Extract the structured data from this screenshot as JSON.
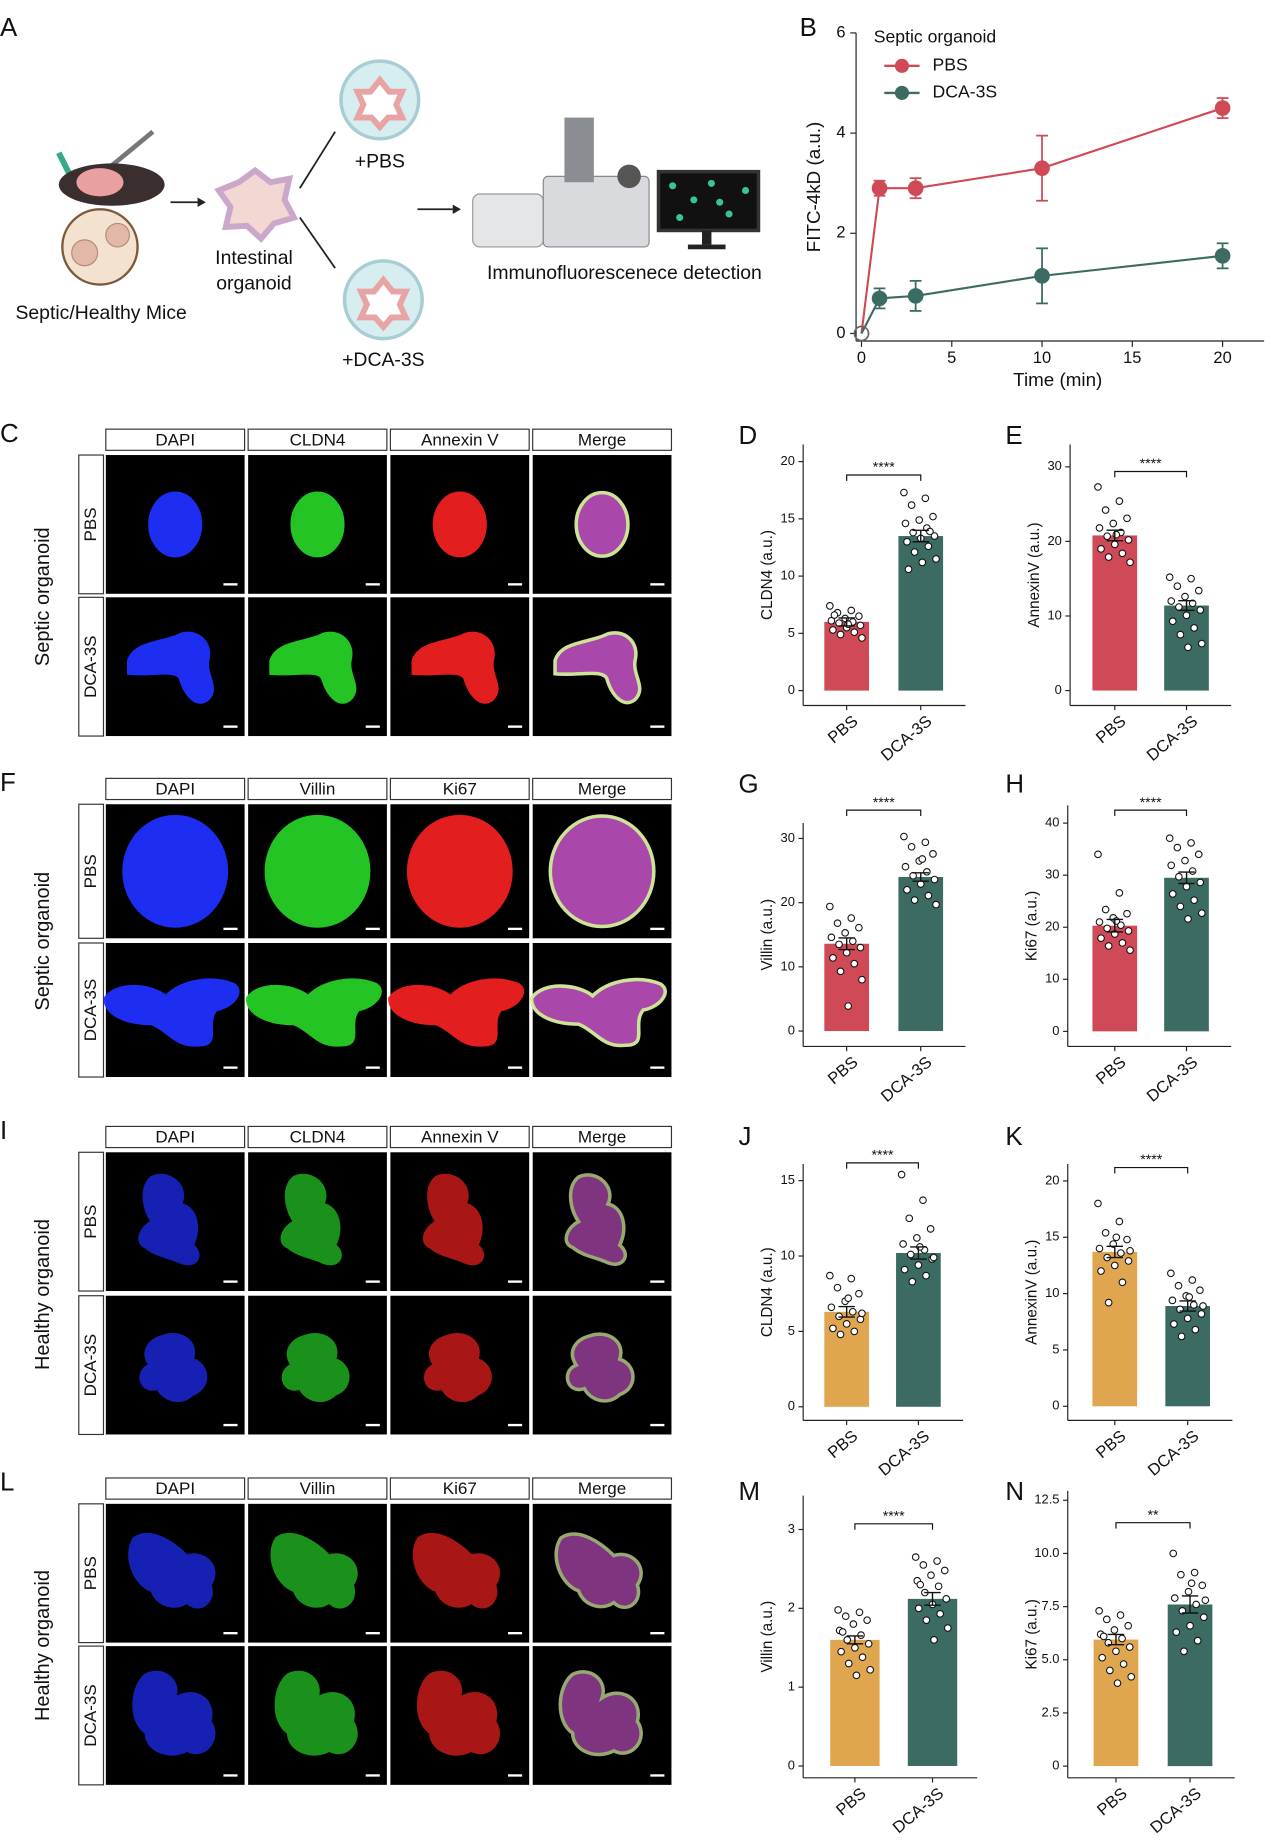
{
  "panel_a": {
    "label": "A",
    "mice": "Septic/Healthy Mice",
    "organoid": [
      "Intestinal",
      "organoid"
    ],
    "treatments": [
      "+PBS",
      "+DCA-3S"
    ],
    "detection": "Immunofluorescenece detection"
  },
  "image_panels": [
    {
      "label": "C",
      "group": "Septic organoid",
      "columns": [
        "DAPI",
        "CLDN4",
        "Annexin V",
        "Merge"
      ],
      "rows": [
        "PBS",
        "DCA-3S"
      ]
    },
    {
      "label": "F",
      "group": "Septic organoid",
      "columns": [
        "DAPI",
        "Villin",
        "Ki67",
        "Merge"
      ],
      "rows": [
        "PBS",
        "DCA-3S"
      ]
    },
    {
      "label": "I",
      "group": "Healthy organoid",
      "columns": [
        "DAPI",
        "CLDN4",
        "Annexin V",
        "Merge"
      ],
      "rows": [
        "PBS",
        "DCA-3S"
      ]
    },
    {
      "label": "L",
      "group": "Healthy organoid",
      "columns": [
        "DAPI",
        "Villin",
        "Ki67",
        "Merge"
      ],
      "rows": [
        "PBS",
        "DCA-3S"
      ]
    }
  ],
  "chart_data": [
    {
      "type": "line",
      "label": "B",
      "legend_title": "Septic organoid",
      "xlabel": "Time (min)",
      "ylabel": "FITC-4kD (a.u.)",
      "x": [
        0,
        1,
        3,
        10,
        20
      ],
      "xlim": [
        -0.3,
        22.3
      ],
      "ylim": [
        -0.15,
        6
      ],
      "xticks": [
        0,
        5,
        10,
        15,
        20
      ],
      "yticks": [
        0,
        2,
        4,
        6
      ],
      "series": [
        {
          "name": "PBS",
          "color": "#cf4a56",
          "values": [
            0,
            2.9,
            2.9,
            3.3,
            4.5
          ],
          "errors": [
            null,
            0.15,
            0.2,
            0.65,
            0.2
          ]
        },
        {
          "name": "DCA-3S",
          "color": "#3b6b62",
          "values": [
            0,
            0.7,
            0.75,
            1.15,
            1.55
          ],
          "errors": [
            null,
            0.2,
            0.3,
            0.55,
            0.25
          ]
        }
      ]
    },
    {
      "type": "bar",
      "label": "D",
      "ylabel": "CLDN4 (a.u.)",
      "categories": [
        "PBS",
        "DCA-3S"
      ],
      "colors": [
        "#cf4a56",
        "#3b6b62"
      ],
      "values": [
        6.0,
        13.5
      ],
      "errors": [
        0.35,
        0.5
      ],
      "ylim": [
        -1.3,
        21.5
      ],
      "yticks": [
        0,
        5,
        10,
        15,
        20
      ],
      "significance": "****",
      "points": [
        [
          7.4,
          7.0,
          6.8,
          6.5,
          6.3,
          6.1,
          6.0,
          5.9,
          5.7,
          5.5,
          5.3,
          5.1,
          4.9,
          4.6,
          5.8,
          6.6
        ],
        [
          17.3,
          16.8,
          16.2,
          15.2,
          14.9,
          14.6,
          14.2,
          13.8,
          13.5,
          13.3,
          13.0,
          12.6,
          12.1,
          11.5,
          11.2,
          10.6,
          13.9
        ]
      ]
    },
    {
      "type": "bar",
      "label": "E",
      "ylabel": "AnnexinV (a.u.)",
      "categories": [
        "PBS",
        "DCA-3S"
      ],
      "colors": [
        "#cf4a56",
        "#3b6b62"
      ],
      "values": [
        20.8,
        11.4
      ],
      "errors": [
        0.7,
        0.65
      ],
      "ylim": [
        -2,
        33
      ],
      "yticks": [
        0,
        10,
        20,
        30
      ],
      "significance": "****",
      "points": [
        [
          27.3,
          25.4,
          24.2,
          23.1,
          22.4,
          21.8,
          21.2,
          20.7,
          20.2,
          19.6,
          19.0,
          18.4,
          17.9,
          17.2,
          20.9
        ],
        [
          15.2,
          15.0,
          14.0,
          13.4,
          12.6,
          12.0,
          11.7,
          11.2,
          10.8,
          10.1,
          9.3,
          8.4,
          7.5,
          6.3,
          5.8
        ]
      ]
    },
    {
      "type": "bar",
      "label": "G",
      "ylabel": "Villin (a.u.)",
      "categories": [
        "PBS",
        "DCA-3S"
      ],
      "colors": [
        "#cf4a56",
        "#3b6b62"
      ],
      "values": [
        13.6,
        24.0
      ],
      "errors": [
        0.9,
        0.65
      ],
      "ylim": [
        -2.4,
        32.4
      ],
      "yticks": [
        0,
        10,
        20,
        30
      ],
      "significance": "****",
      "points": [
        [
          19.4,
          17.6,
          16.8,
          16.1,
          15.3,
          14.6,
          14.0,
          13.5,
          13.0,
          12.2,
          11.4,
          10.5,
          9.3,
          8.0,
          3.9
        ],
        [
          30.3,
          29.4,
          28.7,
          27.6,
          26.5,
          25.6,
          24.8,
          24.2,
          23.6,
          22.9,
          22.0,
          21.1,
          20.4,
          19.7,
          26.8
        ]
      ]
    },
    {
      "type": "bar",
      "label": "H",
      "ylabel": "Ki67 (a.u.)",
      "categories": [
        "PBS",
        "DCA-3S"
      ],
      "colors": [
        "#cf4a56",
        "#3b6b62"
      ],
      "values": [
        20.3,
        29.5
      ],
      "errors": [
        1.2,
        1.1
      ],
      "ylim": [
        -2.9,
        43.4
      ],
      "yticks": [
        0,
        10,
        20,
        30,
        40
      ],
      "significance": "****",
      "points": [
        [
          34.0,
          26.6,
          23.4,
          22.6,
          21.8,
          21.0,
          20.4,
          19.8,
          19.3,
          18.7,
          17.9,
          17.0,
          16.4,
          15.6,
          21.2
        ],
        [
          37.1,
          36.2,
          35.3,
          34.0,
          32.8,
          31.9,
          30.8,
          29.7,
          28.6,
          27.8,
          26.4,
          25.2,
          24.0,
          22.7,
          21.6
        ]
      ]
    },
    {
      "type": "bar",
      "label": "J",
      "ylabel": "CLDN4 (a.u.)",
      "categories": [
        "PBS",
        "DCA-3S"
      ],
      "colors": [
        "#e0a54f",
        "#3b6b62"
      ],
      "values": [
        6.3,
        10.2
      ],
      "errors": [
        0.35,
        0.4
      ],
      "ylim": [
        -0.9,
        16.1
      ],
      "yticks": [
        0,
        5,
        10,
        15
      ],
      "significance": "****",
      "points": [
        [
          8.7,
          8.5,
          7.9,
          7.5,
          7.0,
          6.6,
          6.3,
          6.0,
          5.8,
          5.5,
          5.2,
          5.0,
          4.8,
          6.2,
          7.2
        ],
        [
          15.4,
          13.7,
          12.5,
          11.8,
          11.2,
          10.8,
          10.4,
          10.1,
          9.8,
          9.4,
          9.1,
          8.7,
          8.3,
          9.9,
          10.6
        ]
      ]
    },
    {
      "type": "bar",
      "label": "K",
      "ylabel": "AnnexinV (a.u.)",
      "categories": [
        "PBS",
        "DCA-3S"
      ],
      "colors": [
        "#e0a54f",
        "#3b6b62"
      ],
      "values": [
        13.7,
        8.9
      ],
      "errors": [
        0.5,
        0.45
      ],
      "ylim": [
        -1.25,
        21.5
      ],
      "yticks": [
        0,
        5,
        10,
        15,
        20
      ],
      "significance": "****",
      "points": [
        [
          18.0,
          16.4,
          15.4,
          14.8,
          14.4,
          14.0,
          13.6,
          13.2,
          12.9,
          12.5,
          12.0,
          11.0,
          9.2,
          13.8,
          15.0
        ],
        [
          11.8,
          11.2,
          10.7,
          10.3,
          9.8,
          9.4,
          9.0,
          8.6,
          8.2,
          7.8,
          7.3,
          6.8,
          6.2,
          8.9,
          9.7
        ]
      ]
    },
    {
      "type": "bar",
      "label": "M",
      "ylabel": "Villin (a.u.)",
      "categories": [
        "PBS",
        "DCA-3S"
      ],
      "colors": [
        "#e0a54f",
        "#3b6b62"
      ],
      "values": [
        1.6,
        2.12
      ],
      "errors": [
        0.05,
        0.08
      ],
      "ylim": [
        -0.15,
        3.43
      ],
      "yticks": [
        0,
        1,
        2,
        3
      ],
      "significance": "****",
      "points": [
        [
          1.98,
          1.95,
          1.9,
          1.85,
          1.8,
          1.72,
          1.66,
          1.6,
          1.55,
          1.5,
          1.45,
          1.38,
          1.3,
          1.22,
          1.15,
          1.7
        ],
        [
          2.65,
          2.6,
          2.55,
          2.48,
          2.42,
          2.35,
          2.28,
          2.2,
          2.12,
          2.05,
          2.0,
          1.93,
          1.85,
          1.75,
          1.6,
          2.3
        ]
      ]
    },
    {
      "type": "bar",
      "label": "N",
      "ylabel": "Ki67 (a.u.)",
      "categories": [
        "PBS",
        "DCA-3S"
      ],
      "colors": [
        "#e0a54f",
        "#3b6b62"
      ],
      "values": [
        5.95,
        7.6
      ],
      "errors": [
        0.24,
        0.4
      ],
      "ylim": [
        -0.55,
        12.94
      ],
      "yticks": [
        0,
        2.5,
        {
          "value": 5,
          "label": "5.0"
        },
        7.5,
        {
          "value": 10,
          "label": "10.0"
        },
        12.5
      ],
      "significance": "**",
      "points": [
        [
          7.3,
          7.1,
          6.9,
          6.6,
          6.4,
          6.2,
          6.0,
          5.8,
          5.6,
          5.4,
          5.1,
          4.8,
          4.5,
          4.2,
          3.9,
          6.1
        ],
        [
          10.0,
          9.1,
          9.0,
          8.5,
          8.2,
          7.9,
          7.6,
          7.3,
          7.0,
          6.6,
          6.3,
          5.9,
          5.4,
          7.8,
          8.6
        ]
      ]
    }
  ]
}
